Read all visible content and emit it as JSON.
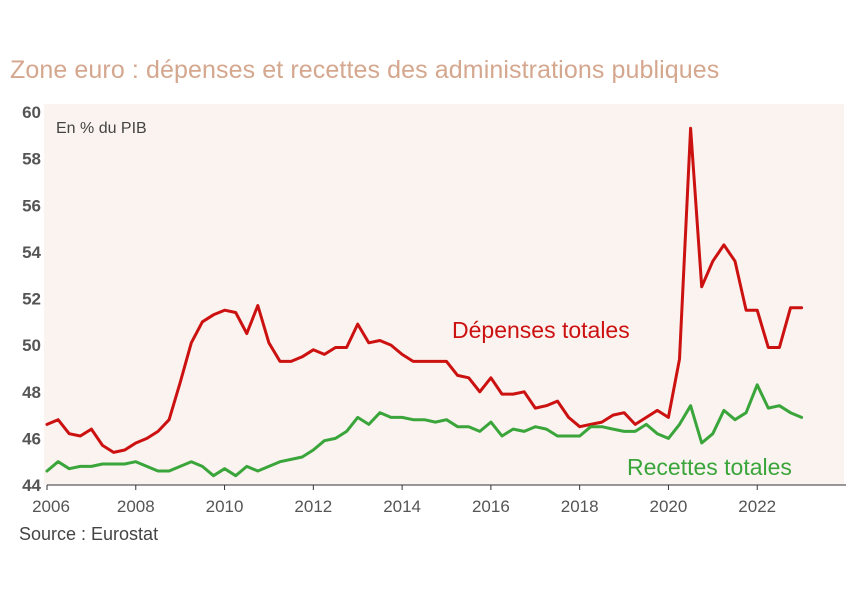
{
  "chart_data": {
    "type": "line",
    "title": "Zone euro : dépenses et recettes des administrations publiques",
    "ylabel": "En % du PIB",
    "source": "Source : Eurostat",
    "ylim": [
      44,
      60
    ],
    "xlim": [
      2006,
      2024
    ],
    "yticks": [
      "44",
      "46",
      "48",
      "50",
      "52",
      "54",
      "56",
      "58",
      "60"
    ],
    "xticks": [
      "2006",
      "2008",
      "2010",
      "2012",
      "2014",
      "2016",
      "2018",
      "2020",
      "2022"
    ],
    "grid": false,
    "legend": "inline labels",
    "x": [
      2006.0,
      2006.25,
      2006.5,
      2006.75,
      2007.0,
      2007.25,
      2007.5,
      2007.75,
      2008.0,
      2008.25,
      2008.5,
      2008.75,
      2009.0,
      2009.25,
      2009.5,
      2009.75,
      2010.0,
      2010.25,
      2010.5,
      2010.75,
      2011.0,
      2011.25,
      2011.5,
      2011.75,
      2012.0,
      2012.25,
      2012.5,
      2012.75,
      2013.0,
      2013.25,
      2013.5,
      2013.75,
      2014.0,
      2014.25,
      2014.5,
      2014.75,
      2015.0,
      2015.25,
      2015.5,
      2015.75,
      2016.0,
      2016.25,
      2016.5,
      2016.75,
      2017.0,
      2017.25,
      2017.5,
      2017.75,
      2018.0,
      2018.25,
      2018.5,
      2018.75,
      2019.0,
      2019.25,
      2019.5,
      2019.75,
      2020.0,
      2020.25,
      2020.5,
      2020.75,
      2021.0,
      2021.25,
      2021.5,
      2021.75,
      2022.0,
      2022.25,
      2022.5,
      2022.75,
      2023.0
    ],
    "series": [
      {
        "name": "Dépenses totales",
        "color": "#cc1111",
        "values": [
          46.6,
          46.8,
          46.2,
          46.1,
          46.4,
          45.7,
          45.4,
          45.5,
          45.8,
          46.0,
          46.3,
          46.8,
          48.4,
          50.1,
          51.0,
          51.3,
          51.5,
          51.4,
          50.5,
          51.7,
          50.1,
          49.3,
          49.3,
          49.5,
          49.8,
          49.6,
          49.9,
          49.9,
          50.9,
          50.1,
          50.2,
          50.0,
          49.6,
          49.3,
          49.3,
          49.3,
          49.3,
          48.7,
          48.6,
          48.0,
          48.6,
          47.9,
          47.9,
          48.0,
          47.3,
          47.4,
          47.6,
          46.9,
          46.5,
          46.6,
          46.7,
          47.0,
          47.1,
          46.6,
          46.9,
          47.2,
          46.9,
          49.4,
          59.3,
          52.5,
          53.6,
          54.3,
          53.6,
          51.5,
          51.5,
          49.9,
          49.9,
          51.6,
          51.6
        ]
      },
      {
        "name": "Recettes totales",
        "color": "#3aa53a",
        "values": [
          44.6,
          45.0,
          44.7,
          44.8,
          44.8,
          44.9,
          44.9,
          44.9,
          45.0,
          44.8,
          44.6,
          44.6,
          44.8,
          45.0,
          44.8,
          44.4,
          44.7,
          44.4,
          44.8,
          44.6,
          44.8,
          45.0,
          45.1,
          45.2,
          45.5,
          45.9,
          46.0,
          46.3,
          46.9,
          46.6,
          47.1,
          46.9,
          46.9,
          46.8,
          46.8,
          46.7,
          46.8,
          46.5,
          46.5,
          46.3,
          46.7,
          46.1,
          46.4,
          46.3,
          46.5,
          46.4,
          46.1,
          46.1,
          46.1,
          46.5,
          46.5,
          46.4,
          46.3,
          46.3,
          46.6,
          46.2,
          46.0,
          46.6,
          47.4,
          45.8,
          46.2,
          47.2,
          46.8,
          47.1,
          48.3,
          47.3,
          47.4,
          47.1,
          46.9
        ]
      }
    ]
  }
}
